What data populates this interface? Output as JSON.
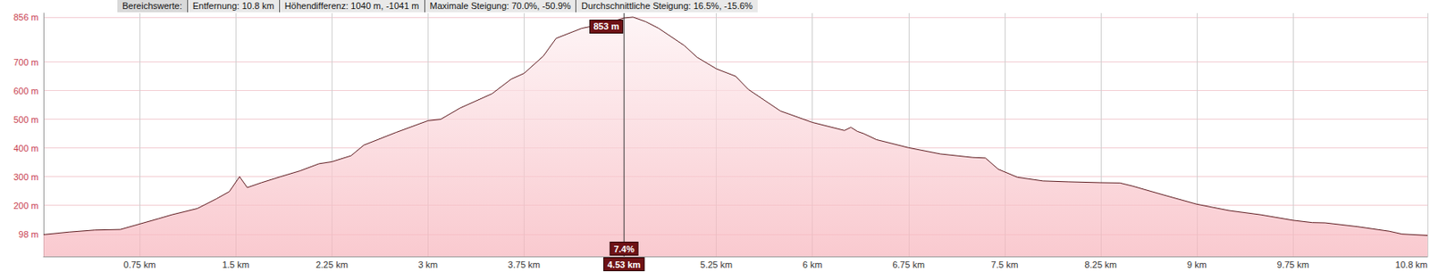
{
  "chart_data": {
    "type": "area",
    "header": [
      "Bereichswerte:",
      "Entfernung: 10.8 km",
      "Höhendifferenz: 1040 m, -1041 m",
      "Maximale Steigung: 70.0%, -50.9%",
      "Durchschnittliche Steigung: 16.5%, -15.6%"
    ],
    "x": [
      0,
      0.2,
      0.4,
      0.6,
      0.75,
      0.9,
      1.0,
      1.2,
      1.35,
      1.45,
      1.53,
      1.59,
      1.7,
      1.85,
      2.0,
      2.15,
      2.25,
      2.4,
      2.5,
      2.75,
      3.0,
      3.1,
      3.25,
      3.5,
      3.65,
      3.75,
      3.9,
      4.0,
      4.2,
      4.4,
      4.53,
      4.6,
      4.7,
      4.8,
      5.0,
      5.1,
      5.25,
      5.4,
      5.5,
      5.75,
      6.0,
      6.25,
      6.3,
      6.35,
      6.4,
      6.5,
      6.75,
      7.0,
      7.25,
      7.35,
      7.45,
      7.6,
      7.8,
      8.0,
      8.25,
      8.4,
      8.5,
      8.75,
      9.0,
      9.25,
      9.5,
      9.75,
      9.9,
      10.0,
      10.25,
      10.5,
      10.6,
      10.8
    ],
    "values": [
      98,
      107,
      114,
      116,
      135,
      154,
      167,
      189,
      223,
      248,
      300,
      262,
      279,
      300,
      320,
      345,
      352,
      373,
      410,
      454,
      495,
      500,
      539,
      589,
      640,
      660,
      720,
      782,
      817,
      835,
      853,
      856,
      840,
      817,
      757,
      716,
      676,
      650,
      604,
      529,
      489,
      461,
      472,
      458,
      450,
      429,
      401,
      379,
      367,
      365,
      326,
      298,
      285,
      282,
      279,
      278,
      267,
      235,
      204,
      182,
      167,
      148,
      140,
      139,
      126,
      110,
      100,
      95
    ],
    "color": "#5c1a1e",
    "xlim": [
      0,
      10.8
    ],
    "ylim": [
      22,
      870
    ],
    "xticks": [
      {
        "value": 0.75,
        "label": "0.75 km"
      },
      {
        "value": 1.5,
        "label": "1.5 km"
      },
      {
        "value": 2.25,
        "label": "2.25 km"
      },
      {
        "value": 3,
        "label": "3 km"
      },
      {
        "value": 3.75,
        "label": "3.75 km"
      },
      {
        "value": 5.25,
        "label": "5.25 km"
      },
      {
        "value": 6,
        "label": "6 km"
      },
      {
        "value": 6.75,
        "label": "6.75 km"
      },
      {
        "value": 7.5,
        "label": "7.5 km"
      },
      {
        "value": 8.25,
        "label": "8.25 km"
      },
      {
        "value": 9,
        "label": "9 km"
      },
      {
        "value": 9.75,
        "label": "9.75 km"
      },
      {
        "value": 10.8,
        "label": "10.8 km"
      }
    ],
    "yticks": [
      {
        "value": 98,
        "label": "98 m"
      },
      {
        "value": 200,
        "label": "200 m"
      },
      {
        "value": 300,
        "label": "300 m"
      },
      {
        "value": 400,
        "label": "400 m"
      },
      {
        "value": 500,
        "label": "500 m"
      },
      {
        "value": 600,
        "label": "600 m"
      },
      {
        "value": 700,
        "label": "700 m"
      },
      {
        "value": 856,
        "label": "856 m"
      }
    ],
    "grid": true,
    "annotations": [
      {
        "x": 4.53,
        "y": 853,
        "text": "853 m",
        "position": "plot"
      },
      {
        "x": 4.53,
        "text": "7.4%",
        "position": "bottom"
      },
      {
        "x": 4.53,
        "text": "4.53 km",
        "position": "axis"
      }
    ]
  }
}
